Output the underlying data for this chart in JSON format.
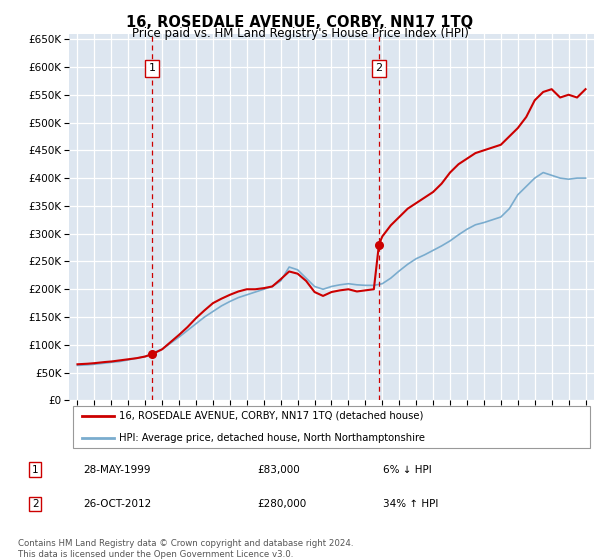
{
  "title": "16, ROSEDALE AVENUE, CORBY, NN17 1TQ",
  "subtitle": "Price paid vs. HM Land Registry's House Price Index (HPI)",
  "plot_bg_color": "#dde6f0",
  "ylim": [
    0,
    660000
  ],
  "yticks": [
    0,
    50000,
    100000,
    150000,
    200000,
    250000,
    300000,
    350000,
    400000,
    450000,
    500000,
    550000,
    600000,
    650000
  ],
  "xlim_start": 1994.5,
  "xlim_end": 2025.5,
  "red_line_color": "#cc0000",
  "blue_line_color": "#7aacce",
  "vline_color": "#cc0000",
  "sale1_year": 1999.4,
  "sale2_year": 2012.8,
  "sale1_price": 83000,
  "sale2_price": 280000,
  "legend_label_red": "16, ROSEDALE AVENUE, CORBY, NN17 1TQ (detached house)",
  "legend_label_blue": "HPI: Average price, detached house, North Northamptonshire",
  "table_row1": [
    "1",
    "28-MAY-1999",
    "£83,000",
    "6% ↓ HPI"
  ],
  "table_row2": [
    "2",
    "26-OCT-2012",
    "£280,000",
    "34% ↑ HPI"
  ],
  "footer": "Contains HM Land Registry data © Crown copyright and database right 2024.\nThis data is licensed under the Open Government Licence v3.0.",
  "red_x": [
    1995.0,
    1995.3,
    1995.6,
    1996.0,
    1996.3,
    1996.6,
    1997.0,
    1997.5,
    1998.0,
    1998.5,
    1999.0,
    1999.4,
    2000.0,
    2000.5,
    2001.0,
    2001.5,
    2002.0,
    2002.5,
    2003.0,
    2003.5,
    2004.0,
    2004.5,
    2005.0,
    2005.5,
    2006.0,
    2006.5,
    2007.0,
    2007.5,
    2008.0,
    2008.5,
    2009.0,
    2009.5,
    2010.0,
    2010.5,
    2011.0,
    2011.5,
    2012.0,
    2012.5,
    2012.8,
    2013.0,
    2013.5,
    2014.0,
    2014.5,
    2015.0,
    2015.5,
    2016.0,
    2016.5,
    2017.0,
    2017.5,
    2018.0,
    2018.5,
    2019.0,
    2019.5,
    2020.0,
    2020.5,
    2021.0,
    2021.5,
    2022.0,
    2022.5,
    2023.0,
    2023.5,
    2024.0,
    2024.5,
    2025.0
  ],
  "red_y": [
    65000,
    65500,
    66000,
    67000,
    68000,
    69000,
    70000,
    72000,
    74000,
    76000,
    79000,
    83000,
    92000,
    105000,
    118000,
    132000,
    148000,
    162000,
    175000,
    183000,
    190000,
    196000,
    200000,
    200000,
    202000,
    205000,
    218000,
    232000,
    228000,
    215000,
    195000,
    188000,
    195000,
    198000,
    200000,
    196000,
    198000,
    200000,
    280000,
    295000,
    315000,
    330000,
    345000,
    355000,
    365000,
    375000,
    390000,
    410000,
    425000,
    435000,
    445000,
    450000,
    455000,
    460000,
    475000,
    490000,
    510000,
    540000,
    555000,
    560000,
    545000,
    550000,
    545000,
    560000
  ],
  "blue_x": [
    1995.0,
    1995.3,
    1995.6,
    1996.0,
    1996.3,
    1996.6,
    1997.0,
    1997.5,
    1998.0,
    1998.5,
    1999.0,
    1999.5,
    2000.0,
    2000.5,
    2001.0,
    2001.5,
    2002.0,
    2002.5,
    2003.0,
    2003.5,
    2004.0,
    2004.5,
    2005.0,
    2005.5,
    2006.0,
    2006.5,
    2007.0,
    2007.5,
    2008.0,
    2008.5,
    2009.0,
    2009.5,
    2010.0,
    2010.5,
    2011.0,
    2011.5,
    2012.0,
    2012.5,
    2013.0,
    2013.5,
    2014.0,
    2014.5,
    2015.0,
    2015.5,
    2016.0,
    2016.5,
    2017.0,
    2017.5,
    2018.0,
    2018.5,
    2019.0,
    2019.5,
    2020.0,
    2020.5,
    2021.0,
    2021.5,
    2022.0,
    2022.5,
    2023.0,
    2023.5,
    2024.0,
    2024.5,
    2025.0
  ],
  "blue_y": [
    63000,
    63500,
    64000,
    65000,
    66000,
    67000,
    68500,
    70000,
    73000,
    76000,
    79000,
    86000,
    92000,
    103000,
    114000,
    126000,
    138000,
    150000,
    160000,
    170000,
    178000,
    185000,
    190000,
    195000,
    200000,
    205000,
    215000,
    240000,
    235000,
    220000,
    205000,
    200000,
    205000,
    208000,
    210000,
    208000,
    207000,
    207000,
    210000,
    220000,
    233000,
    245000,
    255000,
    262000,
    270000,
    278000,
    287000,
    298000,
    308000,
    316000,
    320000,
    325000,
    330000,
    345000,
    370000,
    385000,
    400000,
    410000,
    405000,
    400000,
    398000,
    400000,
    400000
  ]
}
